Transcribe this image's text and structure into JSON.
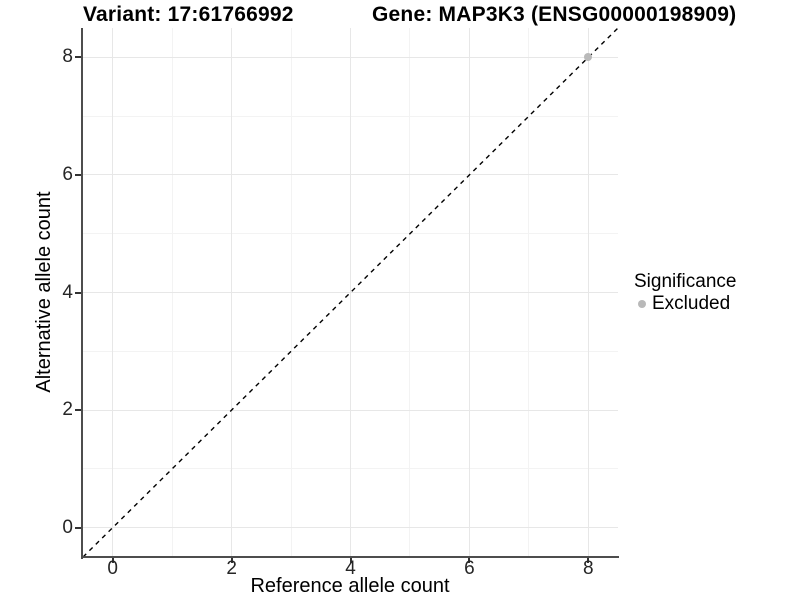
{
  "titles": {
    "variant": "Variant: 17:61766992",
    "gene": "Gene: MAP3K3 (ENSG00000198909)"
  },
  "axes": {
    "x": {
      "label": "Reference allele count",
      "major_ticks": [
        0,
        2,
        4,
        6,
        8
      ],
      "minor_ticks": [
        1,
        3,
        5,
        7
      ]
    },
    "y": {
      "label": "Alternative allele count",
      "major_ticks": [
        0,
        2,
        4,
        6,
        8
      ],
      "minor_ticks": [
        1,
        3,
        5,
        7
      ]
    }
  },
  "legend": {
    "title": "Significance",
    "items": [
      {
        "label": "Excluded",
        "color": "#b9b9b9"
      }
    ]
  },
  "colors": {
    "axis_line": "#4d4d4d",
    "grid_major": "#e7e7e7",
    "grid_minor": "#f3f3f3",
    "reference_line": "#000000",
    "excluded_point": "#b9b9b9"
  },
  "chart_data": {
    "type": "scatter",
    "title": "Variant: 17:61766992 | Gene: MAP3K3 (ENSG00000198909)",
    "xlabel": "Reference allele count",
    "ylabel": "Alternative allele count",
    "xlim": [
      -0.5,
      8.5
    ],
    "ylim": [
      -0.5,
      8.5
    ],
    "grid": true,
    "legend_position": "right",
    "series": [
      {
        "name": "Excluded",
        "color": "#b9b9b9",
        "points": [
          {
            "x": 8,
            "y": 8
          }
        ]
      }
    ],
    "reference_line": {
      "type": "identity y=x",
      "style": "dashed",
      "color": "#000000"
    }
  }
}
